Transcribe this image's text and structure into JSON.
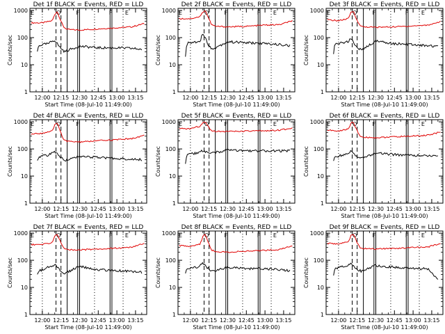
{
  "figure": {
    "ylabel": "Counts/sec",
    "xlabel": "Start Time (08-Jul-10 11:49:00)",
    "xticks": [
      "12:00",
      "12:15",
      "12:30",
      "12:45",
      "13:00",
      "13:15"
    ],
    "yticks": [
      "1",
      "10",
      "100",
      "1000"
    ],
    "marker_labels": [
      "E",
      "O",
      "F",
      "F",
      "E"
    ],
    "colors": {
      "events": "#000000",
      "lld": "#e00000"
    }
  },
  "chart_data": [
    {
      "type": "line",
      "title": "Det 1f BLACK = Events, RED = LLD",
      "xunit": "minutes after 12:00",
      "xlim": [
        -10,
        84
      ],
      "ylim": [
        1,
        1200
      ],
      "yscale": "log",
      "series": [
        {
          "x": [
            -9,
            0,
            8,
            10,
            12,
            14,
            17,
            20,
            30,
            45,
            60,
            72,
            82
          ],
          "values": [
            350,
            350,
            420,
            700,
            950,
            520,
            250,
            200,
            190,
            210,
            230,
            250,
            330
          ]
        },
        {
          "x": [
            -4,
            -3,
            0,
            5,
            8,
            10,
            14,
            18,
            21,
            30,
            45,
            60,
            72,
            80
          ],
          "values": [
            30,
            50,
            55,
            60,
            75,
            80,
            45,
            30,
            35,
            48,
            42,
            42,
            40,
            37
          ]
        }
      ]
    },
    {
      "type": "line",
      "title": "Det 2f BLACK = Events, RED = LLD",
      "xunit": "minutes after 12:00",
      "xlim": [
        -10,
        84
      ],
      "ylim": [
        1,
        1200
      ],
      "yscale": "log",
      "series": [
        {
          "x": [
            -9,
            0,
            8,
            10,
            12,
            14,
            17,
            20,
            30,
            45,
            60,
            72,
            82
          ],
          "values": [
            500,
            500,
            600,
            900,
            1000,
            600,
            300,
            260,
            250,
            260,
            290,
            300,
            420
          ]
        },
        {
          "x": [
            -4,
            -3,
            0,
            5,
            8,
            10,
            14,
            18,
            21,
            30,
            45,
            60,
            72,
            80
          ],
          "values": [
            20,
            60,
            65,
            70,
            80,
            150,
            60,
            35,
            45,
            70,
            65,
            60,
            55,
            50
          ]
        }
      ]
    },
    {
      "type": "line",
      "title": "Det 3f BLACK = Events, RED = LLD",
      "xunit": "minutes after 12:00",
      "xlim": [
        -10,
        84
      ],
      "ylim": [
        1,
        1200
      ],
      "yscale": "log",
      "series": [
        {
          "x": [
            -9,
            0,
            8,
            10,
            12,
            14,
            17,
            20,
            30,
            45,
            60,
            72,
            82
          ],
          "values": [
            450,
            420,
            500,
            850,
            950,
            550,
            280,
            250,
            240,
            250,
            270,
            290,
            390
          ]
        },
        {
          "x": [
            -4,
            -3,
            0,
            5,
            8,
            10,
            14,
            18,
            21,
            30,
            45,
            60,
            72,
            80
          ],
          "values": [
            25,
            55,
            60,
            65,
            75,
            90,
            50,
            35,
            40,
            75,
            60,
            55,
            50,
            48
          ]
        }
      ]
    },
    {
      "type": "line",
      "title": "Det 4f BLACK = Events, RED = LLD",
      "xunit": "minutes after 12:00",
      "xlim": [
        -10,
        84
      ],
      "ylim": [
        1,
        1200
      ],
      "yscale": "log",
      "series": [
        {
          "x": [
            -9,
            0,
            8,
            10,
            12,
            14,
            17,
            20,
            30,
            45,
            60,
            72,
            82
          ],
          "values": [
            350,
            380,
            450,
            750,
            950,
            520,
            230,
            190,
            180,
            200,
            220,
            240,
            320
          ]
        },
        {
          "x": [
            -4,
            -3,
            0,
            5,
            8,
            10,
            14,
            18,
            21,
            30,
            45,
            60,
            72,
            80
          ],
          "values": [
            40,
            50,
            55,
            60,
            70,
            75,
            55,
            38,
            40,
            55,
            48,
            45,
            42,
            40
          ]
        }
      ]
    },
    {
      "type": "line",
      "title": "Det 5f BLACK = Events, RED = LLD",
      "xunit": "minutes after 12:00",
      "xlim": [
        -10,
        84
      ],
      "ylim": [
        1,
        1200
      ],
      "yscale": "log",
      "series": [
        {
          "x": [
            -9,
            0,
            8,
            10,
            12,
            14,
            17,
            20,
            30,
            45,
            60,
            72,
            82
          ],
          "values": [
            550,
            560,
            700,
            950,
            1000,
            700,
            480,
            450,
            440,
            450,
            470,
            490,
            600
          ]
        },
        {
          "x": [
            -4,
            -3,
            0,
            5,
            8,
            10,
            14,
            18,
            21,
            30,
            45,
            60,
            72,
            80
          ],
          "values": [
            30,
            60,
            65,
            70,
            80,
            85,
            70,
            70,
            75,
            90,
            85,
            85,
            85,
            85
          ]
        }
      ]
    },
    {
      "type": "line",
      "title": "Det 6f BLACK = Events, RED = LLD",
      "xunit": "minutes after 12:00",
      "xlim": [
        -10,
        84
      ],
      "ylim": [
        1,
        1200
      ],
      "yscale": "log",
      "series": [
        {
          "x": [
            -9,
            0,
            8,
            10,
            12,
            14,
            17,
            20,
            30,
            45,
            60,
            72,
            82
          ],
          "values": [
            500,
            450,
            550,
            900,
            1000,
            580,
            300,
            270,
            260,
            280,
            300,
            320,
            420
          ]
        },
        {
          "x": [
            -4,
            -3,
            0,
            5,
            8,
            10,
            14,
            18,
            21,
            30,
            45,
            60,
            72,
            80
          ],
          "values": [
            35,
            50,
            55,
            60,
            70,
            85,
            55,
            45,
            50,
            70,
            62,
            58,
            55,
            52
          ]
        }
      ]
    },
    {
      "type": "line",
      "title": "Det 7f BLACK = Events, RED = LLD",
      "xunit": "minutes after 12:00",
      "xlim": [
        -10,
        84
      ],
      "ylim": [
        1,
        1200
      ],
      "yscale": "log",
      "series": [
        {
          "x": [
            -9,
            0,
            8,
            10,
            12,
            14,
            17,
            20,
            30,
            45,
            60,
            72,
            82
          ],
          "values": [
            380,
            380,
            450,
            780,
            950,
            550,
            280,
            250,
            240,
            260,
            280,
            300,
            420
          ]
        },
        {
          "x": [
            -4,
            -3,
            0,
            5,
            8,
            10,
            14,
            18,
            21,
            30,
            45,
            60,
            72,
            80
          ],
          "values": [
            30,
            40,
            45,
            55,
            65,
            70,
            45,
            32,
            38,
            60,
            45,
            42,
            38,
            36
          ]
        }
      ]
    },
    {
      "type": "line",
      "title": "Det 8f BLACK = Events, RED = LLD",
      "xunit": "minutes after 12:00",
      "xlim": [
        -10,
        84
      ],
      "ylim": [
        1,
        1200
      ],
      "yscale": "log",
      "series": [
        {
          "x": [
            -9,
            0,
            8,
            10,
            12,
            14,
            17,
            20,
            30,
            45,
            60,
            72,
            82
          ],
          "values": [
            350,
            330,
            400,
            750,
            950,
            520,
            240,
            210,
            200,
            215,
            235,
            250,
            340
          ]
        },
        {
          "x": [
            -4,
            -3,
            0,
            5,
            8,
            10,
            14,
            18,
            21,
            30,
            45,
            60,
            72,
            80
          ],
          "values": [
            30,
            45,
            50,
            55,
            65,
            80,
            50,
            38,
            42,
            55,
            50,
            48,
            45,
            42
          ]
        }
      ]
    },
    {
      "type": "line",
      "title": "Det 9f BLACK = Events, RED = LLD",
      "xunit": "minutes after 12:00",
      "xlim": [
        -10,
        84
      ],
      "ylim": [
        1,
        1200
      ],
      "yscale": "log",
      "series": [
        {
          "x": [
            -9,
            0,
            8,
            10,
            12,
            14,
            17,
            20,
            30,
            45,
            60,
            72,
            82
          ],
          "values": [
            420,
            400,
            480,
            820,
            950,
            560,
            300,
            270,
            260,
            275,
            295,
            310,
            420
          ]
        },
        {
          "x": [
            -4,
            -3,
            0,
            5,
            8,
            10,
            14,
            18,
            21,
            30,
            45,
            60,
            72,
            80
          ],
          "values": [
            25,
            50,
            55,
            60,
            70,
            80,
            50,
            40,
            45,
            65,
            55,
            50,
            48,
            20
          ]
        }
      ]
    }
  ]
}
